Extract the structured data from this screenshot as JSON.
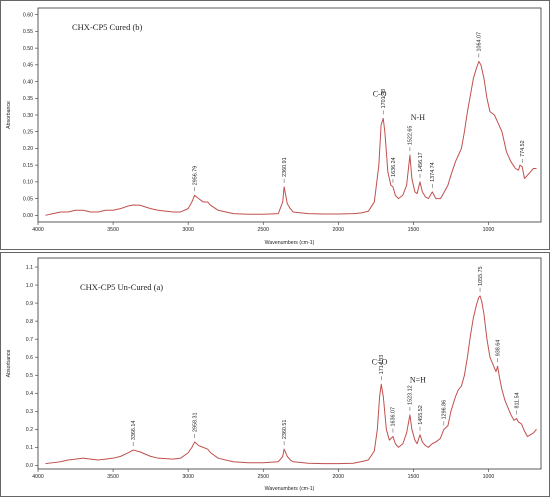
{
  "chart_data": [
    {
      "type": "line",
      "title": "CHX-CP5 Cured (b)",
      "xlabel": "Wavenumbers (cm-1)",
      "ylabel": "Absorbance",
      "xlim": [
        4000,
        650
      ],
      "ylim": [
        -0.02,
        0.62
      ],
      "x_ticks": [
        "4000",
        "3500",
        "3000",
        "2500",
        "2000",
        "1500",
        "1000"
      ],
      "y_ticks": [
        "0.00",
        "0.05",
        "0.10",
        "0.15",
        "0.20",
        "0.25",
        "0.30",
        "0.35",
        "0.40",
        "0.45",
        "0.50",
        "0.55",
        "0.60"
      ],
      "series": [
        {
          "color": "#c0504d",
          "points": [
            [
              3950,
              0.0
            ],
            [
              3900,
              0.005
            ],
            [
              3850,
              0.01
            ],
            [
              3800,
              0.01
            ],
            [
              3750,
              0.015
            ],
            [
              3700,
              0.015
            ],
            [
              3650,
              0.01
            ],
            [
              3600,
              0.01
            ],
            [
              3550,
              0.015
            ],
            [
              3500,
              0.015
            ],
            [
              3450,
              0.02
            ],
            [
              3400,
              0.028
            ],
            [
              3366,
              0.031
            ],
            [
              3320,
              0.03
            ],
            [
              3250,
              0.02
            ],
            [
              3200,
              0.015
            ],
            [
              3100,
              0.01
            ],
            [
              3050,
              0.01
            ],
            [
              3000,
              0.02
            ],
            [
              2975,
              0.04
            ],
            [
              2957,
              0.06
            ],
            [
              2930,
              0.05
            ],
            [
              2900,
              0.04
            ],
            [
              2870,
              0.04
            ],
            [
              2850,
              0.03
            ],
            [
              2800,
              0.015
            ],
            [
              2700,
              0.005
            ],
            [
              2600,
              0.003
            ],
            [
              2500,
              0.003
            ],
            [
              2400,
              0.005
            ],
            [
              2370,
              0.04
            ],
            [
              2361,
              0.085
            ],
            [
              2350,
              0.06
            ],
            [
              2340,
              0.035
            ],
            [
              2320,
              0.02
            ],
            [
              2300,
              0.01
            ],
            [
              2200,
              0.005
            ],
            [
              2100,
              0.004
            ],
            [
              2000,
              0.004
            ],
            [
              1900,
              0.005
            ],
            [
              1850,
              0.007
            ],
            [
              1800,
              0.012
            ],
            [
              1760,
              0.04
            ],
            [
              1730,
              0.15
            ],
            [
              1715,
              0.27
            ],
            [
              1701,
              0.29
            ],
            [
              1690,
              0.25
            ],
            [
              1670,
              0.13
            ],
            [
              1650,
              0.09
            ],
            [
              1636,
              0.085
            ],
            [
              1620,
              0.06
            ],
            [
              1600,
              0.05
            ],
            [
              1570,
              0.06
            ],
            [
              1545,
              0.09
            ],
            [
              1523,
              0.18
            ],
            [
              1510,
              0.11
            ],
            [
              1490,
              0.07
            ],
            [
              1475,
              0.065
            ],
            [
              1456,
              0.1
            ],
            [
              1440,
              0.07
            ],
            [
              1420,
              0.055
            ],
            [
              1400,
              0.05
            ],
            [
              1374,
              0.07
            ],
            [
              1350,
              0.05
            ],
            [
              1320,
              0.05
            ],
            [
              1300,
              0.065
            ],
            [
              1270,
              0.09
            ],
            [
              1250,
              0.12
            ],
            [
              1220,
              0.16
            ],
            [
              1200,
              0.18
            ],
            [
              1180,
              0.2
            ],
            [
              1160,
              0.25
            ],
            [
              1140,
              0.31
            ],
            [
              1120,
              0.36
            ],
            [
              1100,
              0.41
            ],
            [
              1080,
              0.44
            ],
            [
              1064,
              0.46
            ],
            [
              1050,
              0.45
            ],
            [
              1030,
              0.41
            ],
            [
              1010,
              0.35
            ],
            [
              990,
              0.31
            ],
            [
              960,
              0.3
            ],
            [
              940,
              0.28
            ],
            [
              910,
              0.25
            ],
            [
              880,
              0.19
            ],
            [
              850,
              0.16
            ],
            [
              820,
              0.14
            ],
            [
              800,
              0.135
            ],
            [
              790,
              0.15
            ],
            [
              775,
              0.145
            ],
            [
              760,
              0.11
            ],
            [
              740,
              0.12
            ],
            [
              720,
              0.13
            ],
            [
              700,
              0.14
            ],
            [
              680,
              0.14
            ]
          ]
        }
      ],
      "annotations": [
        {
          "text": "2956.79",
          "x": 2957,
          "y": 0.06
        },
        {
          "text": "2360.91",
          "x": 2361,
          "y": 0.085
        },
        {
          "text": "1701.43",
          "x": 1701,
          "y": 0.29
        },
        {
          "text": "1636.24",
          "x": 1636,
          "y": 0.085
        },
        {
          "text": "1522.65",
          "x": 1523,
          "y": 0.18
        },
        {
          "text": "1456.17",
          "x": 1456,
          "y": 0.1
        },
        {
          "text": "1374.74",
          "x": 1374,
          "y": 0.07
        },
        {
          "text": "1064.07",
          "x": 1064,
          "y": 0.46
        },
        {
          "text": "774.52",
          "x": 775,
          "y": 0.145
        }
      ],
      "group_labels": [
        {
          "text": "C-O",
          "x": 1725,
          "y": 0.355
        },
        {
          "text": "N-H",
          "x": 1470,
          "y": 0.285
        }
      ]
    },
    {
      "type": "line",
      "title": "CHX-CP5 Un-Cured (a)",
      "xlabel": "Wavenumbers (cm-1)",
      "ylabel": "Absorbance",
      "xlim": [
        4000,
        650
      ],
      "ylim": [
        -0.02,
        1.15
      ],
      "x_ticks": [
        "4000",
        "3500",
        "3000",
        "2500",
        "2000",
        "1500",
        "1000"
      ],
      "y_ticks": [
        "0.0",
        "0.1",
        "0.2",
        "0.3",
        "0.4",
        "0.5",
        "0.6",
        "0.7",
        "0.8",
        "0.9",
        "1.0",
        "1.1"
      ],
      "series": [
        {
          "color": "#c0504d",
          "points": [
            [
              3950,
              0.01
            ],
            [
              3900,
              0.015
            ],
            [
              3850,
              0.02
            ],
            [
              3800,
              0.03
            ],
            [
              3750,
              0.035
            ],
            [
              3700,
              0.04
            ],
            [
              3650,
              0.035
            ],
            [
              3600,
              0.03
            ],
            [
              3550,
              0.035
            ],
            [
              3500,
              0.04
            ],
            [
              3450,
              0.05
            ],
            [
              3400,
              0.07
            ],
            [
              3366,
              0.085
            ],
            [
              3320,
              0.075
            ],
            [
              3250,
              0.05
            ],
            [
              3200,
              0.04
            ],
            [
              3100,
              0.035
            ],
            [
              3050,
              0.04
            ],
            [
              3000,
              0.07
            ],
            [
              2975,
              0.1
            ],
            [
              2956,
              0.13
            ],
            [
              2930,
              0.11
            ],
            [
              2900,
              0.1
            ],
            [
              2870,
              0.09
            ],
            [
              2850,
              0.07
            ],
            [
              2800,
              0.04
            ],
            [
              2700,
              0.02
            ],
            [
              2600,
              0.015
            ],
            [
              2500,
              0.015
            ],
            [
              2400,
              0.02
            ],
            [
              2370,
              0.05
            ],
            [
              2361,
              0.09
            ],
            [
              2350,
              0.07
            ],
            [
              2340,
              0.05
            ],
            [
              2320,
              0.03
            ],
            [
              2300,
              0.02
            ],
            [
              2200,
              0.012
            ],
            [
              2100,
              0.01
            ],
            [
              2000,
              0.01
            ],
            [
              1900,
              0.012
            ],
            [
              1850,
              0.02
            ],
            [
              1800,
              0.03
            ],
            [
              1760,
              0.08
            ],
            [
              1740,
              0.2
            ],
            [
              1725,
              0.38
            ],
            [
              1714,
              0.45
            ],
            [
              1700,
              0.38
            ],
            [
              1680,
              0.2
            ],
            [
              1660,
              0.14
            ],
            [
              1636,
              0.16
            ],
            [
              1620,
              0.12
            ],
            [
              1600,
              0.1
            ],
            [
              1570,
              0.12
            ],
            [
              1545,
              0.18
            ],
            [
              1523,
              0.28
            ],
            [
              1510,
              0.2
            ],
            [
              1490,
              0.14
            ],
            [
              1475,
              0.12
            ],
            [
              1456,
              0.17
            ],
            [
              1440,
              0.13
            ],
            [
              1420,
              0.11
            ],
            [
              1400,
              0.1
            ],
            [
              1375,
              0.12
            ],
            [
              1350,
              0.13
            ],
            [
              1320,
              0.15
            ],
            [
              1297,
              0.2
            ],
            [
              1270,
              0.22
            ],
            [
              1250,
              0.3
            ],
            [
              1220,
              0.38
            ],
            [
              1200,
              0.42
            ],
            [
              1180,
              0.44
            ],
            [
              1160,
              0.5
            ],
            [
              1140,
              0.6
            ],
            [
              1120,
              0.72
            ],
            [
              1100,
              0.82
            ],
            [
              1080,
              0.89
            ],
            [
              1065,
              0.93
            ],
            [
              1056,
              0.94
            ],
            [
              1045,
              0.91
            ],
            [
              1030,
              0.84
            ],
            [
              1010,
              0.7
            ],
            [
              990,
              0.6
            ],
            [
              970,
              0.56
            ],
            [
              950,
              0.52
            ],
            [
              939,
              0.55
            ],
            [
              925,
              0.48
            ],
            [
              910,
              0.42
            ],
            [
              890,
              0.36
            ],
            [
              870,
              0.32
            ],
            [
              850,
              0.28
            ],
            [
              830,
              0.25
            ],
            [
              812,
              0.26
            ],
            [
              800,
              0.24
            ],
            [
              780,
              0.23
            ],
            [
              760,
              0.19
            ],
            [
              740,
              0.16
            ],
            [
              720,
              0.17
            ],
            [
              700,
              0.18
            ],
            [
              680,
              0.2
            ]
          ]
        }
      ],
      "annotations": [
        {
          "text": "3366.14",
          "x": 3366,
          "y": 0.085
        },
        {
          "text": "2958.31",
          "x": 2956,
          "y": 0.13
        },
        {
          "text": "2360.51",
          "x": 2361,
          "y": 0.09
        },
        {
          "text": "1714.33",
          "x": 1714,
          "y": 0.45
        },
        {
          "text": "1636.07",
          "x": 1636,
          "y": 0.16
        },
        {
          "text": "1523.12",
          "x": 1523,
          "y": 0.28
        },
        {
          "text": "1455.52",
          "x": 1456,
          "y": 0.17
        },
        {
          "text": "1296.86",
          "x": 1297,
          "y": 0.2
        },
        {
          "text": "1055.75",
          "x": 1056,
          "y": 0.94
        },
        {
          "text": "938.64",
          "x": 939,
          "y": 0.55
        },
        {
          "text": "811.54",
          "x": 812,
          "y": 0.26
        }
      ],
      "group_labels": [
        {
          "text": "C=O",
          "x": 1725,
          "y": 0.56
        },
        {
          "text": "N=H",
          "x": 1470,
          "y": 0.46
        }
      ]
    }
  ]
}
